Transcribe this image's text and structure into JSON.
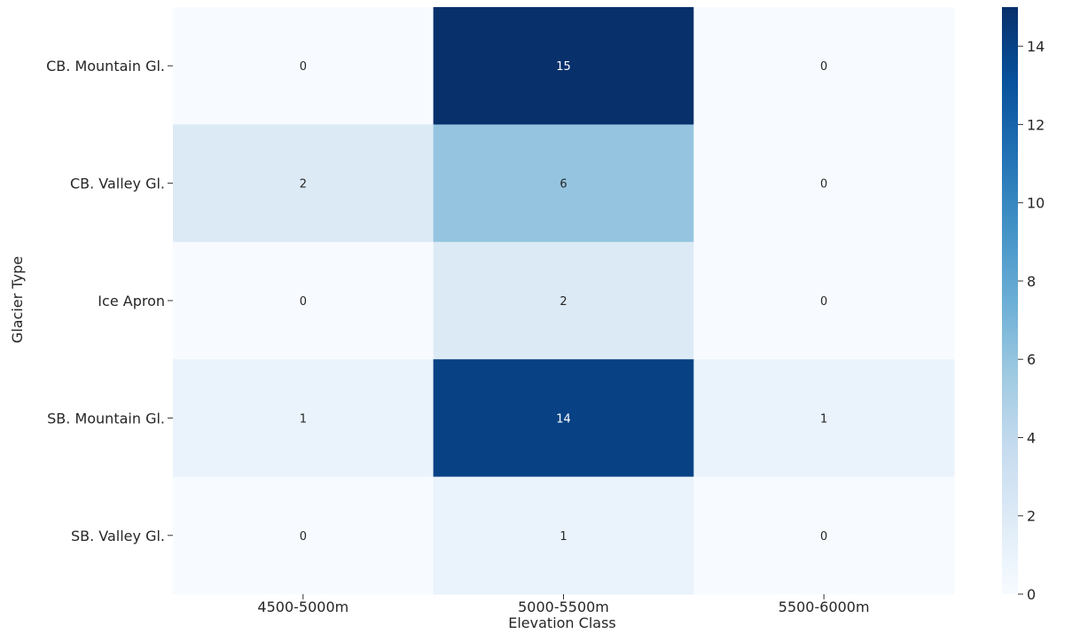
{
  "chart_data": {
    "type": "heatmap",
    "title": "",
    "xlabel": "Elevation Class",
    "ylabel": "Glacier Type",
    "x_categories": [
      "4500-5000m",
      "5000-5500m",
      "5500-6000m"
    ],
    "y_categories": [
      "CB. Mountain Gl.",
      "CB. Valley Gl.",
      "Ice Apron",
      "SB. Mountain Gl.",
      "SB. Valley Gl."
    ],
    "values": [
      [
        0,
        15,
        0
      ],
      [
        2,
        6,
        0
      ],
      [
        0,
        2,
        0
      ],
      [
        1,
        14,
        1
      ],
      [
        0,
        1,
        0
      ]
    ],
    "color_scale": {
      "name": "Blues",
      "min": 0,
      "max": 15,
      "ticks": [
        0,
        2,
        4,
        6,
        8,
        10,
        12,
        14
      ],
      "low_color": "#f7fbff",
      "high_color": "#08306b"
    },
    "annotations": true
  }
}
